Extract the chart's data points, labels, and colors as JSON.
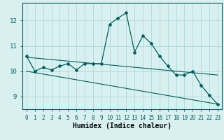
{
  "x": [
    0,
    1,
    2,
    3,
    4,
    5,
    6,
    7,
    8,
    9,
    10,
    11,
    12,
    13,
    14,
    15,
    16,
    17,
    18,
    19,
    20,
    21,
    22,
    23
  ],
  "line1": [
    10.6,
    10.0,
    10.15,
    10.05,
    10.2,
    10.3,
    10.05,
    10.3,
    10.3,
    10.3,
    11.85,
    12.1,
    12.3,
    10.75,
    11.4,
    11.1,
    10.6,
    10.2,
    9.85,
    9.85,
    10.0,
    9.45,
    9.05,
    8.7
  ],
  "trend1_x": [
    0,
    23
  ],
  "trend1_y": [
    10.55,
    9.85
  ],
  "trend2_x": [
    0,
    23
  ],
  "trend2_y": [
    10.0,
    8.7
  ],
  "line_color": "#006060",
  "bg_color": "#d8f0f0",
  "grid_color": "#b0d8d8",
  "xlabel": "Humidex (Indice chaleur)",
  "ylim": [
    8.5,
    12.7
  ],
  "xlim": [
    -0.5,
    23.5
  ],
  "yticks": [
    9,
    10,
    11,
    12
  ],
  "xticks": [
    0,
    1,
    2,
    3,
    4,
    5,
    6,
    7,
    8,
    9,
    10,
    11,
    12,
    13,
    14,
    15,
    16,
    17,
    18,
    19,
    20,
    21,
    22,
    23
  ]
}
